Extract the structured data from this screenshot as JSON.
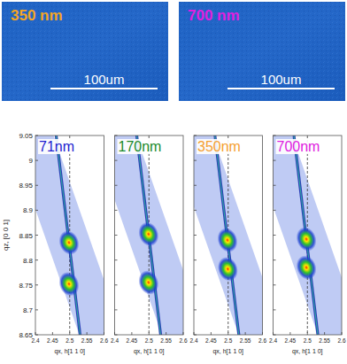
{
  "images": [
    {
      "label": "350 nm",
      "color": "#f5a623",
      "scale_bar": "100um"
    },
    {
      "label": "700 nm",
      "color": "#e020e0",
      "scale_bar": "100um"
    }
  ],
  "chart_data": [
    {
      "type": "scatter",
      "title": "71nm",
      "color": "#2020d0",
      "xlabel": "qx, h[1 1 0]",
      "ylabel": "qz, [0 0 1]",
      "x": [
        2.498,
        2.498
      ],
      "values": [
        8.835,
        8.752
      ],
      "vline": 2.5,
      "xlim": [
        2.4,
        2.6
      ],
      "ylim": [
        8.65,
        9.05
      ],
      "xticks": [
        2.4,
        2.45,
        2.5,
        2.55,
        2.6
      ],
      "yticks": [
        8.65,
        8.7,
        8.75,
        8.8,
        8.85,
        8.9,
        8.95,
        9,
        9.05
      ],
      "tick_labels": true
    },
    {
      "type": "scatter",
      "title": "170nm",
      "color": "#1a8a2a",
      "xlabel": "qx, h[1 1 0]",
      "x": [
        2.499,
        2.499
      ],
      "values": [
        8.852,
        8.755
      ],
      "vline": 2.5,
      "xlim": [
        2.4,
        2.6
      ],
      "ylim": [
        8.65,
        9.05
      ],
      "xticks": [
        2.4,
        2.45,
        2.5,
        2.55,
        2.6
      ],
      "yticks": [
        8.65,
        8.7,
        8.75,
        8.8,
        8.85,
        8.9,
        8.95,
        9,
        9.05
      ],
      "tick_labels": "x"
    },
    {
      "type": "scatter",
      "title": "350nm",
      "color": "#f5a030",
      "xlabel": "qx, h[1 1 0]",
      "x": [
        2.498,
        2.499
      ],
      "values": [
        8.84,
        8.782
      ],
      "vline": 2.5,
      "xlim": [
        2.4,
        2.6
      ],
      "ylim": [
        8.65,
        9.05
      ],
      "xticks": [
        2.4,
        2.45,
        2.5,
        2.55,
        2.6
      ],
      "yticks": [
        8.65,
        8.7,
        8.75,
        8.8,
        8.85,
        8.9,
        8.95,
        9,
        9.05
      ],
      "tick_labels": "x"
    },
    {
      "type": "scatter",
      "title": "700nm",
      "color": "#e020e0",
      "xlabel": "qx, h[1 1 0]",
      "x": [
        2.497,
        2.497
      ],
      "values": [
        8.842,
        8.785
      ],
      "vline": 2.5,
      "xlim": [
        2.4,
        2.6
      ],
      "ylim": [
        8.65,
        9.05
      ],
      "xticks": [
        2.4,
        2.45,
        2.5,
        2.55,
        2.6
      ],
      "yticks": [
        8.65,
        8.7,
        8.75,
        8.8,
        8.85,
        8.9,
        8.95,
        9,
        9.05
      ],
      "tick_labels": "x"
    }
  ]
}
